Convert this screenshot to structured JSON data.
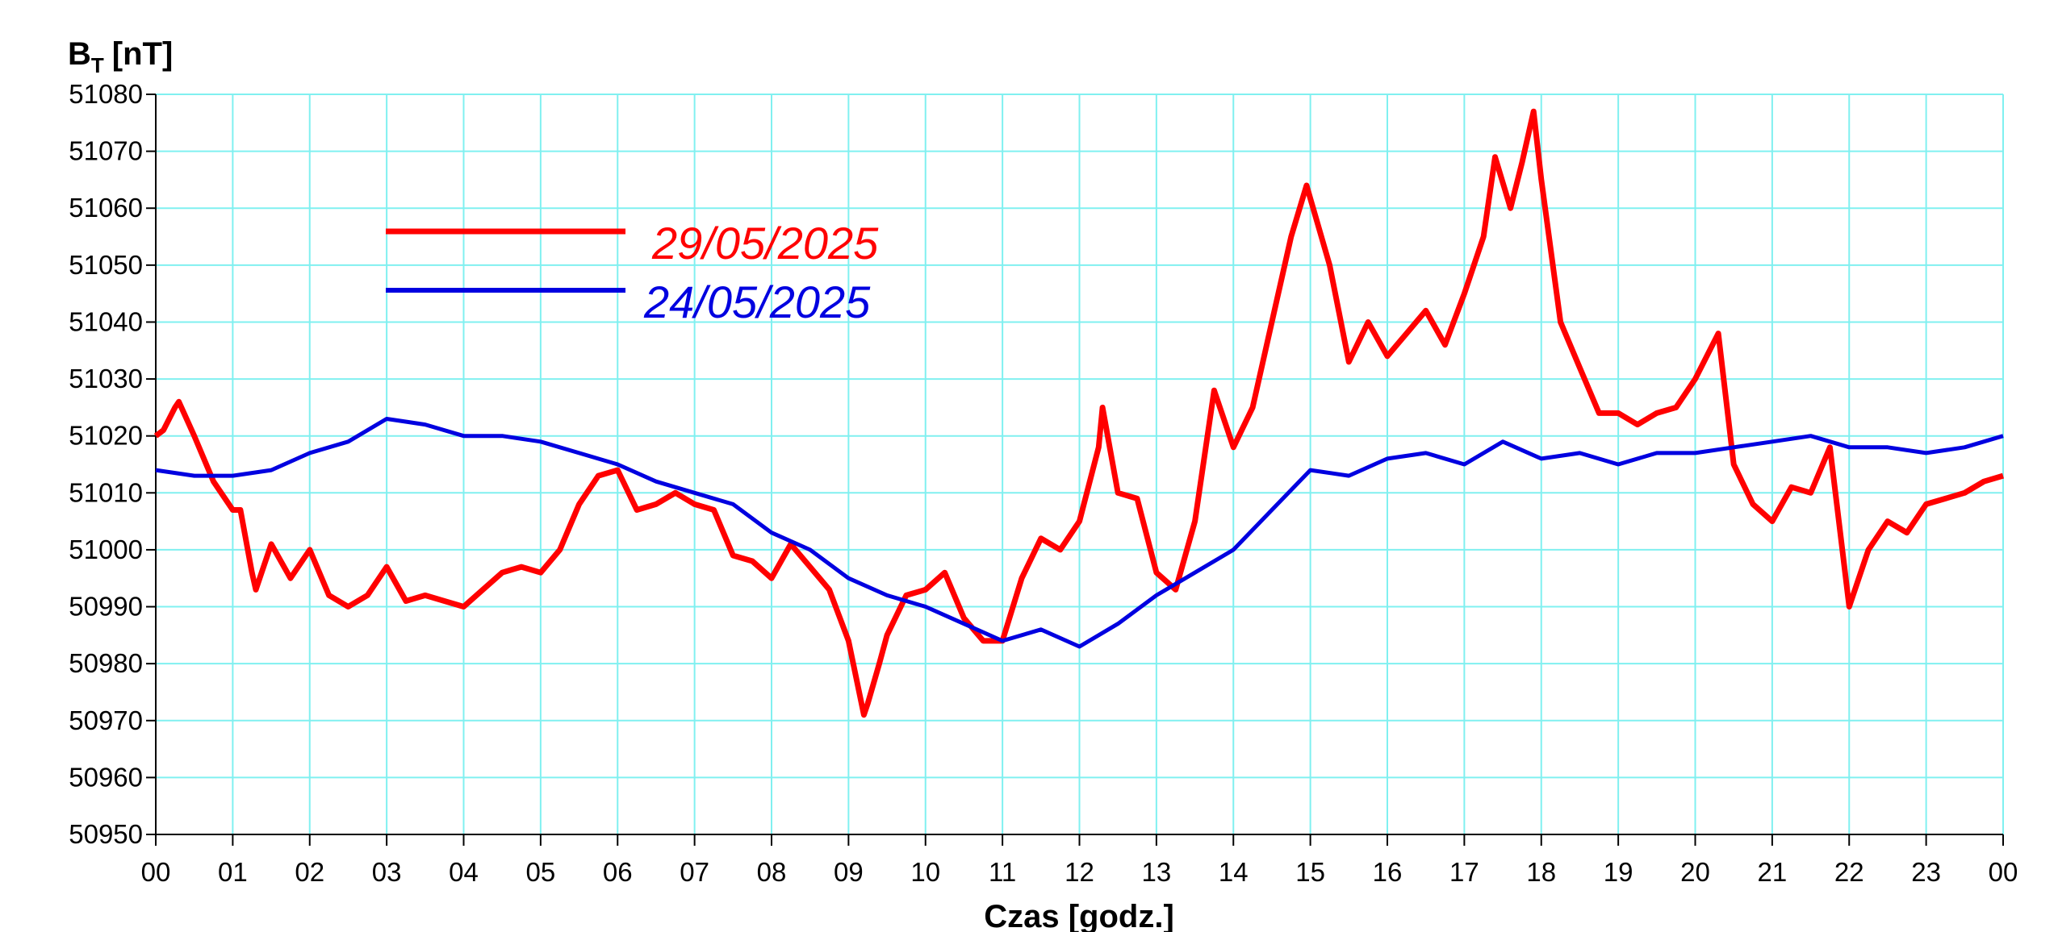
{
  "chart_data": {
    "type": "line",
    "y_label": "B",
    "y_label_subscript": "T",
    "y_label_unit": "[nT]",
    "x_label": "Czas [godz.]",
    "xlim": [
      0,
      24
    ],
    "xticks": [
      {
        "value": 0,
        "label": "00"
      },
      {
        "value": 1,
        "label": "01"
      },
      {
        "value": 2,
        "label": "02"
      },
      {
        "value": 3,
        "label": "03"
      },
      {
        "value": 4,
        "label": "04"
      },
      {
        "value": 5,
        "label": "05"
      },
      {
        "value": 6,
        "label": "06"
      },
      {
        "value": 7,
        "label": "07"
      },
      {
        "value": 8,
        "label": "08"
      },
      {
        "value": 9,
        "label": "09"
      },
      {
        "value": 10,
        "label": "10"
      },
      {
        "value": 11,
        "label": "11"
      },
      {
        "value": 12,
        "label": "12"
      },
      {
        "value": 13,
        "label": "13"
      },
      {
        "value": 14,
        "label": "14"
      },
      {
        "value": 15,
        "label": "15"
      },
      {
        "value": 16,
        "label": "16"
      },
      {
        "value": 17,
        "label": "17"
      },
      {
        "value": 18,
        "label": "18"
      },
      {
        "value": 19,
        "label": "19"
      },
      {
        "value": 20,
        "label": "20"
      },
      {
        "value": 21,
        "label": "21"
      },
      {
        "value": 22,
        "label": "22"
      },
      {
        "value": 23,
        "label": "23"
      },
      {
        "value": 24,
        "label": "00"
      }
    ],
    "ylim": [
      50950,
      51080
    ],
    "yticks": [
      50950,
      50960,
      50970,
      50980,
      50990,
      51000,
      51010,
      51020,
      51030,
      51040,
      51050,
      51060,
      51070,
      51080
    ],
    "grid": true,
    "grid_color": "#80f0f0",
    "series": [
      {
        "name": "29/05/2025",
        "color": "#ff0000",
        "x": [
          0,
          0.1,
          0.25,
          0.3,
          0.5,
          0.75,
          1.0,
          1.1,
          1.25,
          1.3,
          1.5,
          1.75,
          2.0,
          2.25,
          2.5,
          2.75,
          3.0,
          3.25,
          3.5,
          3.75,
          4.0,
          4.25,
          4.5,
          4.75,
          5.0,
          5.25,
          5.5,
          5.75,
          6.0,
          6.25,
          6.5,
          6.75,
          7.0,
          7.25,
          7.5,
          7.75,
          8.0,
          8.25,
          8.5,
          8.75,
          9.0,
          9.2,
          9.25,
          9.4,
          9.5,
          9.75,
          10.0,
          10.25,
          10.5,
          10.75,
          11.0,
          11.25,
          11.5,
          11.75,
          12.0,
          12.25,
          12.3,
          12.5,
          12.75,
          13.0,
          13.25,
          13.5,
          13.75,
          14.0,
          14.25,
          14.5,
          14.75,
          14.95,
          15.25,
          15.5,
          15.75,
          16.0,
          16.25,
          16.5,
          16.75,
          17.0,
          17.25,
          17.4,
          17.6,
          17.75,
          17.9,
          18.0,
          18.25,
          18.5,
          18.75,
          19.0,
          19.25,
          19.5,
          19.75,
          20.0,
          20.3,
          20.5,
          20.75,
          21.0,
          21.25,
          21.5,
          21.75,
          22.0,
          22.25,
          22.5,
          22.75,
          23.0,
          23.25,
          23.5,
          23.75,
          24
        ],
        "values": [
          51020,
          51021,
          51025,
          51026,
          51020,
          51012,
          51007,
          51007,
          50996,
          50993,
          51001,
          50995,
          51000,
          50992,
          50990,
          50992,
          50997,
          50991,
          50992,
          50991,
          50990,
          50993,
          50996,
          50997,
          50996,
          51000,
          51008,
          51013,
          51014,
          51007,
          51008,
          51010,
          51008,
          51007,
          50999,
          50998,
          50995,
          51001,
          50997,
          50993,
          50984,
          50971,
          50973,
          50980,
          50985,
          50992,
          50993,
          50996,
          50988,
          50984,
          50984,
          50995,
          51002,
          51000,
          51005,
          51018,
          51025,
          51010,
          51009,
          50996,
          50993,
          51005,
          51028,
          51018,
          51025,
          51040,
          51055,
          51064,
          51050,
          51033,
          51040,
          51034,
          51038,
          51042,
          51036,
          51045,
          51055,
          51069,
          51060,
          51068,
          51077,
          51065,
          51040,
          51032,
          51024,
          51024,
          51022,
          51024,
          51025,
          51030,
          51038,
          51015,
          51008,
          51005,
          51011,
          51010,
          51018,
          50990,
          51000,
          51005,
          51003,
          51008,
          51009,
          51010,
          51012,
          51013
        ]
      },
      {
        "name": "24/05/2025",
        "color": "#0000e0",
        "x": [
          0,
          0.5,
          1,
          1.5,
          2,
          2.5,
          3,
          3.5,
          4,
          4.5,
          5,
          5.5,
          6,
          6.5,
          7,
          7.5,
          8,
          8.5,
          9,
          9.5,
          10,
          10.5,
          11,
          11.5,
          12,
          12.5,
          13,
          13.5,
          14,
          14.5,
          15,
          15.5,
          16,
          16.5,
          17,
          17.5,
          18,
          18.5,
          19,
          19.5,
          20,
          20.5,
          21,
          21.5,
          22,
          22.5,
          23,
          23.5,
          24
        ],
        "values": [
          51014,
          51013,
          51013,
          51014,
          51017,
          51019,
          51023,
          51022,
          51020,
          51020,
          51019,
          51017,
          51015,
          51012,
          51010,
          51008,
          51003,
          51000,
          50995,
          50992,
          50990,
          50987,
          50984,
          50986,
          50983,
          50987,
          50992,
          50996,
          51000,
          51007,
          51014,
          51013,
          51016,
          51017,
          51015,
          51019,
          51016,
          51017,
          51015,
          51017,
          51017,
          51018,
          51019,
          51020,
          51018,
          51018,
          51017,
          51018,
          51020
        ]
      }
    ]
  }
}
